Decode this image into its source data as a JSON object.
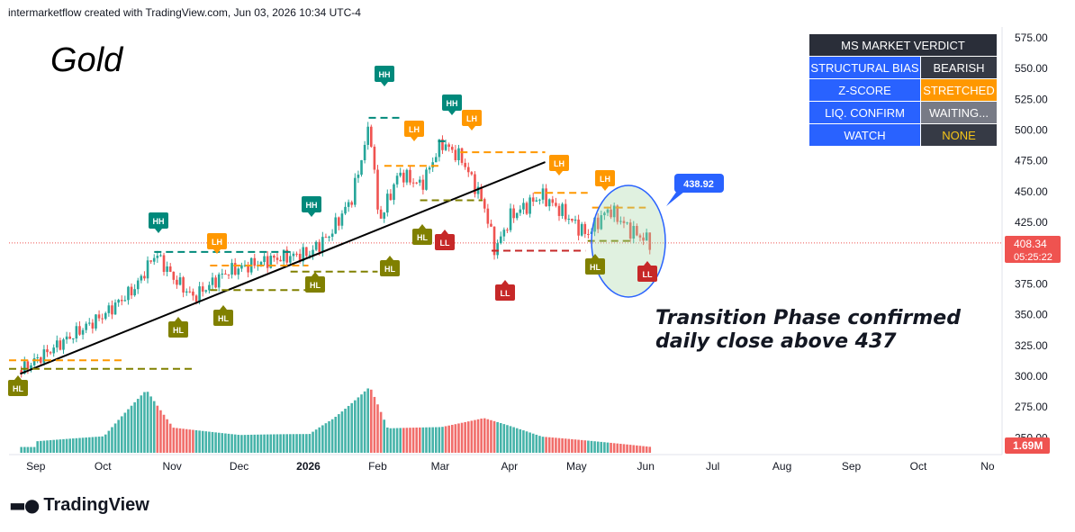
{
  "header": {
    "text": "intermarketflow created with TradingView.com, Jun 03, 2026 10:34 UTC-4"
  },
  "title": "Gold",
  "annotation": {
    "line1": "Transition Phase confirmed",
    "line2": "daily close above 437"
  },
  "verdict": {
    "title": "MS MARKET VERDICT",
    "rows": [
      {
        "label": "STRUCTURAL BIAS",
        "value": "BEARISH"
      },
      {
        "label": "Z-SCORE",
        "value": "STRETCHED"
      },
      {
        "label": "LIQ. CONFIRM",
        "value": "WAITING..."
      },
      {
        "label": "WATCH",
        "value": "NONE"
      }
    ]
  },
  "brand": "TradingView",
  "colors": {
    "up": "#26a69a",
    "down": "#ef5350",
    "hh": "#00897b",
    "lh": "#ff9800",
    "hl": "#808000",
    "ll": "#c62828",
    "callout": "#2962ff"
  },
  "chart_data": {
    "type": "candlestick",
    "y_ticks": [
      "575.00",
      "550.00",
      "525.00",
      "500.00",
      "475.00",
      "450.00",
      "425.00",
      "400.00",
      "375.00",
      "350.00",
      "325.00",
      "300.00",
      "275.00",
      "250.00"
    ],
    "ylim": [
      250,
      575
    ],
    "x_labels": [
      "Sep",
      "Oct",
      "Nov",
      "Dec",
      "2026",
      "Feb",
      "Mar",
      "Apr",
      "May",
      "Jun",
      "Jul",
      "Aug",
      "Sep",
      "Oct",
      "No"
    ],
    "last_price": "408.34",
    "countdown": "05:25:22",
    "volume_label": "1.69M",
    "callout_price": "438.92",
    "price_path": [
      [
        "2025-08-25",
        305
      ],
      [
        "2025-09-10",
        325
      ],
      [
        "2025-10-01",
        350
      ],
      [
        "2025-10-15",
        372
      ],
      [
        "2025-10-24",
        400
      ],
      [
        "2025-11-01",
        380
      ],
      [
        "2025-11-10",
        364
      ],
      [
        "2025-11-25",
        385
      ],
      [
        "2025-12-15",
        395
      ],
      [
        "2026-01-01",
        400
      ],
      [
        "2026-01-10",
        415
      ],
      [
        "2026-01-20",
        445
      ],
      [
        "2026-01-28",
        505
      ],
      [
        "2026-02-01",
        425
      ],
      [
        "2026-02-10",
        465
      ],
      [
        "2026-02-20",
        455
      ],
      [
        "2026-03-01",
        490
      ],
      [
        "2026-03-10",
        477
      ],
      [
        "2026-03-20",
        440
      ],
      [
        "2026-03-25",
        402
      ],
      [
        "2026-04-01",
        430
      ],
      [
        "2026-04-15",
        447
      ],
      [
        "2026-04-25",
        432
      ],
      [
        "2026-05-05",
        415
      ],
      [
        "2026-05-15",
        436
      ],
      [
        "2026-05-25",
        418
      ],
      [
        "2026-06-03",
        408.34
      ]
    ],
    "volume_path": [
      [
        "2025-09-01",
        10
      ],
      [
        "2025-10-01",
        15
      ],
      [
        "2025-10-20",
        60
      ],
      [
        "2025-11-01",
        25
      ],
      [
        "2025-12-01",
        20
      ],
      [
        "2026-01-01",
        25
      ],
      [
        "2026-01-28",
        85
      ],
      [
        "2026-02-05",
        30
      ],
      [
        "2026-03-01",
        28
      ],
      [
        "2026-03-20",
        35
      ],
      [
        "2026-04-15",
        15
      ],
      [
        "2026-06-03",
        5
      ]
    ],
    "swing_labels": [
      {
        "t": "HH",
        "x": "2025-10-24",
        "y": 400,
        "side": "above"
      },
      {
        "t": "LH",
        "x": "2025-11-20",
        "y": 384,
        "side": "above"
      },
      {
        "t": "HL",
        "x": "2025-11-05",
        "y": 362,
        "side": "below"
      },
      {
        "t": "HL",
        "x": "2025-11-26",
        "y": 365,
        "side": "below"
      },
      {
        "t": "HH",
        "x": "2025-12-24",
        "y": 421,
        "side": "above"
      },
      {
        "t": "HL",
        "x": "2026-01-01",
        "y": 385,
        "side": "below"
      },
      {
        "t": "HH",
        "x": "2026-01-28",
        "y": 510,
        "side": "above"
      },
      {
        "t": "HL",
        "x": "2026-02-01",
        "y": 394,
        "side": "below"
      },
      {
        "t": "LH",
        "x": "2026-02-04",
        "y": 490,
        "side": "above"
      },
      {
        "t": "HL",
        "x": "2026-02-18",
        "y": 435,
        "side": "below"
      },
      {
        "t": "LL",
        "x": "2026-03-01",
        "y": 433,
        "side": "below"
      },
      {
        "t": "HH",
        "x": "2026-02-28",
        "y": 511,
        "side": "above"
      },
      {
        "t": "LH",
        "x": "2026-03-05",
        "y": 501,
        "side": "above"
      },
      {
        "t": "LH",
        "x": "2026-04-12",
        "y": 479,
        "side": "above"
      },
      {
        "t": "LL",
        "x": "2026-03-26",
        "y": 383,
        "side": "below"
      },
      {
        "t": "LH",
        "x": "2026-05-06",
        "y": 455,
        "side": "above"
      },
      {
        "t": "HL",
        "x": "2026-05-06",
        "y": 408,
        "side": "below"
      },
      {
        "t": "LL",
        "x": "2026-05-31",
        "y": 405,
        "side": "below"
      },
      {
        "t": "HL",
        "x": "2025-08-25",
        "y": 300,
        "side": "below"
      }
    ]
  }
}
